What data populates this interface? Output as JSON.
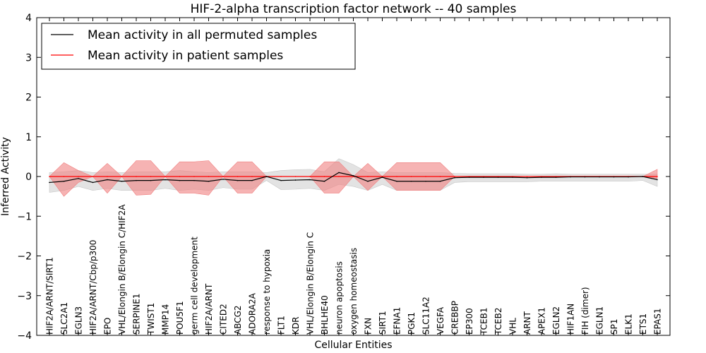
{
  "chart_data": {
    "type": "line",
    "title": "HIF-2-alpha transcription factor network -- 40 samples",
    "xlabel": "Cellular Entities",
    "ylabel": "Inferred Activity",
    "ylim": [
      -4,
      4
    ],
    "yticks": [
      -4,
      -3,
      -2,
      -1,
      0,
      1,
      2,
      3,
      4
    ],
    "ytick_labels": [
      "−4",
      "−3",
      "−2",
      "−1",
      "0",
      "1",
      "2",
      "3",
      "4"
    ],
    "grid": false,
    "legend_position": "top-left",
    "categories": [
      "HIF2A/ARNT/SIRT1",
      "SLC2A1",
      "EGLN3",
      "HIF2A/ARNT/Cbp/p300",
      "EPO",
      "VHL/Elongin B/Elongin C/HIF2A",
      "SERPINE1",
      "TWIST1",
      "MMP14",
      "POU5F1",
      "germ cell development",
      "HIF2A/ARNT",
      "CITED2",
      "ABCG2",
      "ADORA2A",
      "response to hypoxia",
      "FLT1",
      "KDR",
      "VHL/Elongin B/Elongin C",
      "BHLHE40",
      "neuron apoptosis",
      "oxygen homeostasis",
      "FXN",
      "SIRT1",
      "EFNA1",
      "PGK1",
      "SLC11A2",
      "VEGFA",
      "CREBBP",
      "EP300",
      "TCEB1",
      "TCEB2",
      "VHL",
      "ARNT",
      "APEX1",
      "EGLN2",
      "HIF1AN",
      "FIH (dimer)",
      "EGLN1",
      "SP1",
      "ELK1",
      "ETS1",
      "EPAS1"
    ],
    "series": [
      {
        "name": "Mean activity in all permuted samples",
        "color": "#000000",
        "band_color": "#c8c8c8",
        "values": [
          -0.15,
          -0.12,
          -0.05,
          -0.15,
          -0.08,
          -0.12,
          -0.1,
          -0.1,
          -0.08,
          -0.1,
          -0.1,
          -0.12,
          -0.07,
          -0.1,
          -0.1,
          0.0,
          -0.1,
          -0.09,
          -0.08,
          -0.12,
          0.1,
          0.02,
          -0.12,
          -0.02,
          -0.12,
          -0.12,
          -0.12,
          -0.12,
          -0.03,
          -0.02,
          -0.02,
          -0.02,
          -0.02,
          -0.03,
          -0.02,
          -0.02,
          -0.01,
          -0.01,
          -0.01,
          -0.01,
          -0.01,
          0.0,
          -0.08
        ],
        "band_upper": [
          0.1,
          0.12,
          0.15,
          0.1,
          0.12,
          0.1,
          0.12,
          0.12,
          0.12,
          0.15,
          0.12,
          0.1,
          0.12,
          0.12,
          0.12,
          0.1,
          0.15,
          0.17,
          0.18,
          0.12,
          0.45,
          0.3,
          0.1,
          0.12,
          0.1,
          0.1,
          0.1,
          0.1,
          0.08,
          0.07,
          0.07,
          0.07,
          0.07,
          0.06,
          0.06,
          0.07,
          0.06,
          0.06,
          0.06,
          0.06,
          0.06,
          0.06,
          0.06
        ],
        "band_lower": [
          -0.4,
          -0.35,
          -0.25,
          -0.35,
          -0.3,
          -0.35,
          -0.35,
          -0.35,
          -0.3,
          -0.35,
          -0.32,
          -0.35,
          -0.28,
          -0.32,
          -0.32,
          -0.1,
          -0.33,
          -0.32,
          -0.3,
          -0.35,
          -0.2,
          -0.25,
          -0.35,
          -0.2,
          -0.35,
          -0.35,
          -0.35,
          -0.35,
          -0.15,
          -0.13,
          -0.13,
          -0.13,
          -0.13,
          -0.13,
          -0.12,
          -0.12,
          -0.12,
          -0.12,
          -0.12,
          -0.12,
          -0.12,
          -0.1,
          -0.25
        ]
      },
      {
        "name": "Mean activity in patient samples",
        "color": "#ff0000",
        "band_color": "#f08080",
        "values": [
          0.0,
          0.0,
          0.0,
          0.0,
          0.0,
          0.0,
          0.0,
          0.0,
          0.0,
          0.0,
          0.0,
          0.0,
          0.0,
          0.0,
          0.0,
          0.0,
          0.0,
          0.0,
          0.0,
          0.0,
          0.0,
          0.0,
          0.0,
          0.0,
          0.0,
          0.0,
          0.0,
          0.0,
          0.0,
          0.0,
          0.0,
          0.0,
          0.0,
          0.0,
          0.0,
          0.0,
          0.0,
          0.0,
          0.0,
          0.0,
          0.0,
          0.0,
          0.0
        ],
        "band_upper": [
          0.0,
          0.35,
          0.15,
          0.0,
          0.33,
          0.0,
          0.4,
          0.4,
          0.0,
          0.37,
          0.37,
          0.4,
          0.0,
          0.37,
          0.37,
          0.0,
          0.0,
          0.0,
          0.0,
          0.37,
          0.37,
          0.0,
          0.33,
          0.0,
          0.35,
          0.35,
          0.35,
          0.35,
          0.0,
          0.0,
          0.0,
          0.0,
          0.0,
          0.0,
          0.0,
          0.0,
          0.0,
          0.0,
          0.0,
          0.0,
          0.0,
          0.0,
          0.18
        ],
        "band_lower": [
          0.0,
          -0.5,
          -0.15,
          0.0,
          -0.42,
          0.0,
          -0.47,
          -0.45,
          0.0,
          -0.42,
          -0.42,
          -0.47,
          0.0,
          -0.42,
          -0.42,
          0.0,
          0.0,
          0.0,
          0.0,
          -0.42,
          -0.42,
          0.0,
          -0.35,
          0.0,
          -0.35,
          -0.35,
          -0.35,
          -0.35,
          0.0,
          0.0,
          0.0,
          0.0,
          0.0,
          0.0,
          0.0,
          0.0,
          0.0,
          0.0,
          0.0,
          0.0,
          0.0,
          0.0,
          -0.05
        ]
      }
    ],
    "zero_line": {
      "style": "dotted",
      "color": "#000000"
    }
  }
}
